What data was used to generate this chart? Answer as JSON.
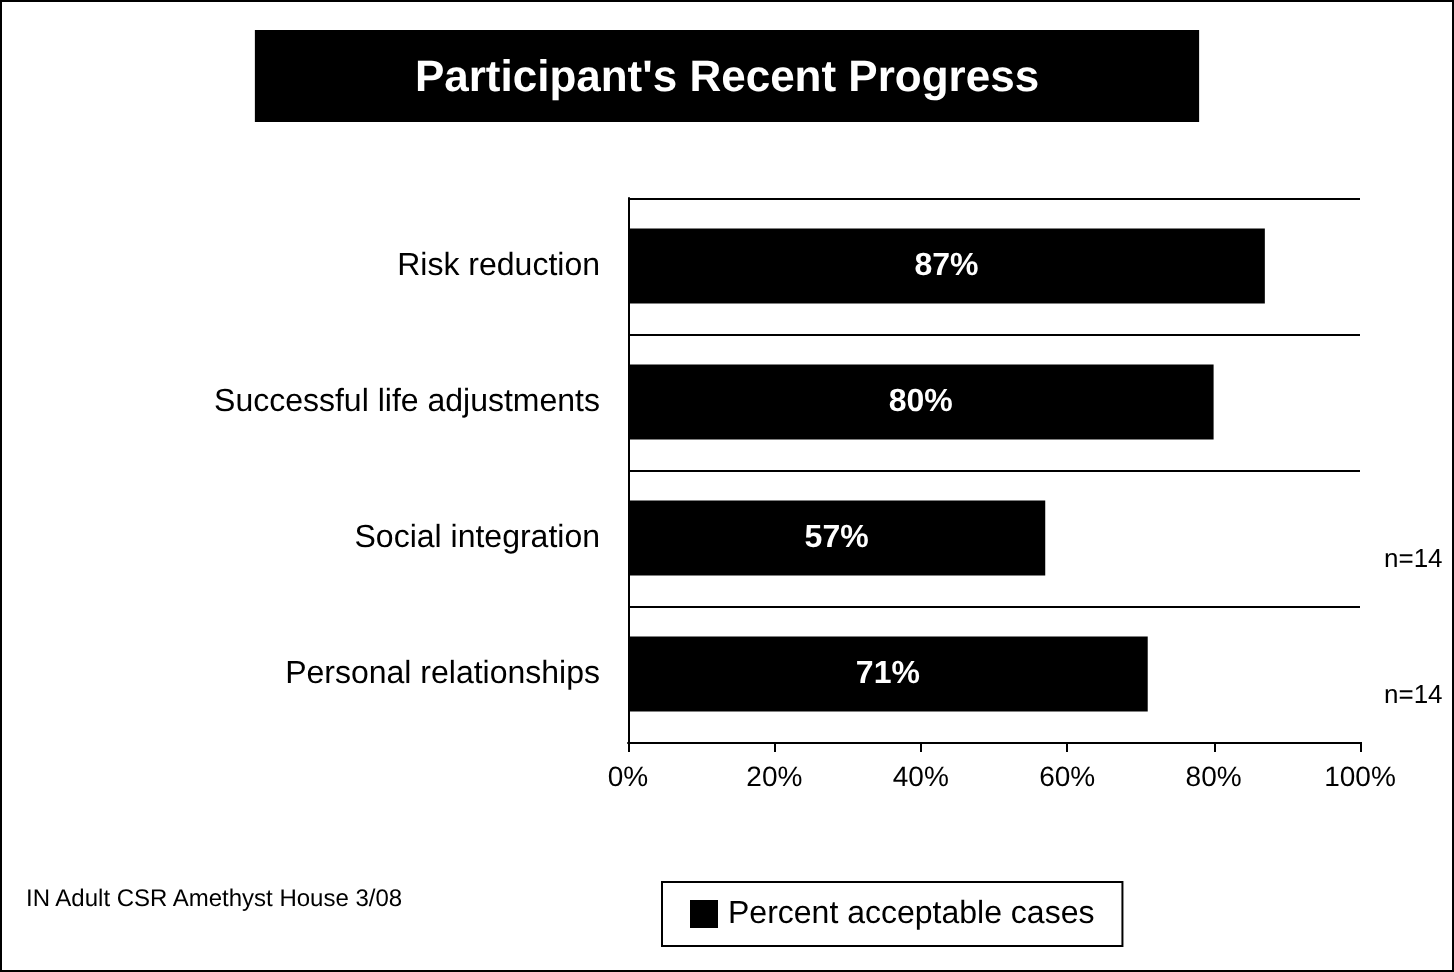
{
  "chart_data": {
    "type": "bar",
    "orientation": "horizontal",
    "title": "Participant's Recent Progress",
    "categories": [
      "Risk reduction",
      "Successful life adjustments",
      "Social integration",
      "Personal relationships"
    ],
    "series": [
      {
        "name": "Percent acceptable cases",
        "color": "#000000",
        "values": [
          87,
          80,
          57,
          71
        ],
        "value_labels": [
          "87%",
          "80%",
          "57%",
          "71%"
        ]
      }
    ],
    "xlim": [
      0,
      100
    ],
    "xticks": [
      {
        "value": 0,
        "label": "0%"
      },
      {
        "value": 20,
        "label": "20%"
      },
      {
        "value": 40,
        "label": "40%"
      },
      {
        "value": 60,
        "label": "60%"
      },
      {
        "value": 80,
        "label": "80%"
      },
      {
        "value": 100,
        "label": "100%"
      }
    ],
    "grid": "y",
    "legend": "bottom",
    "annotations": [
      "n=14",
      "n=14",
      "IN Adult CSR Amethyst House 3/08"
    ]
  }
}
